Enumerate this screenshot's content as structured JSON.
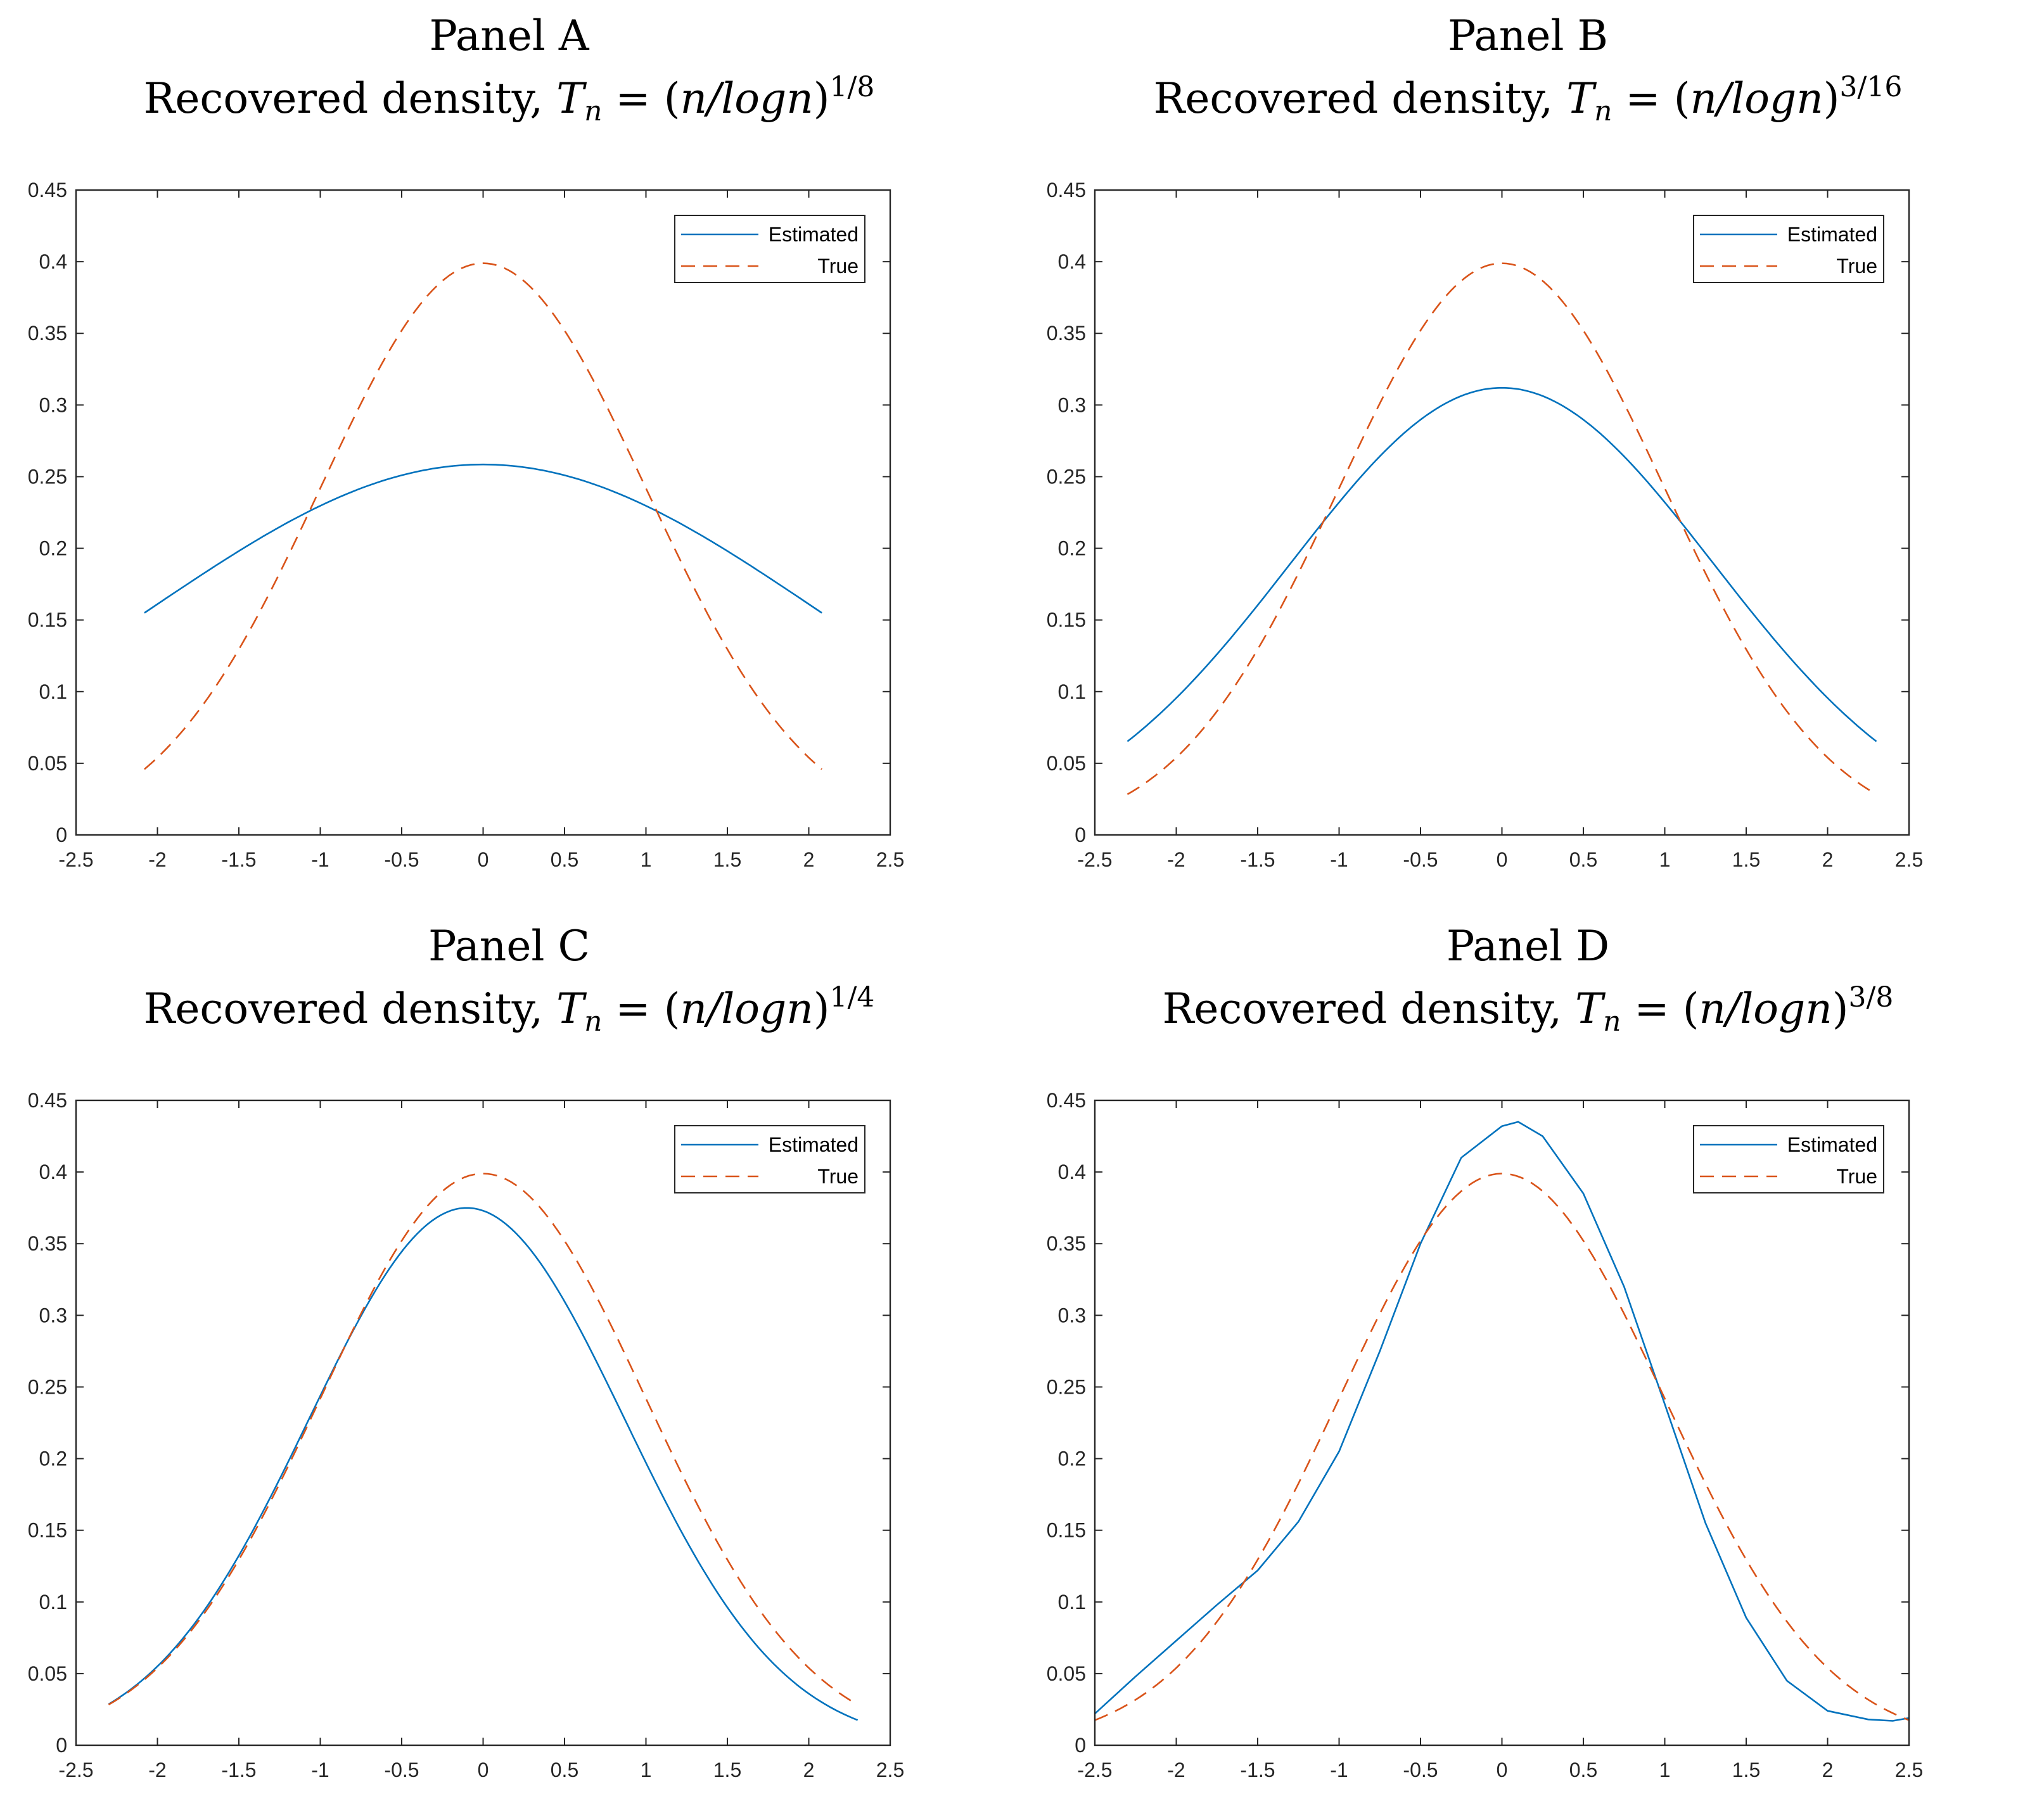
{
  "chart_data": [
    {
      "type": "line",
      "panel_label": "Panel A",
      "title_prefix": "Recovered density, ",
      "title_math": {
        "T": "T",
        "sub": "n",
        "eq": " = (",
        "frac": "n/logn",
        "close": ")",
        "exponent": "1/8"
      },
      "xlim": [
        -2.5,
        2.5
      ],
      "ylim": [
        0,
        0.45
      ],
      "xticks": [
        "-2.5",
        "-2",
        "-1.5",
        "-1",
        "-0.5",
        "0",
        "0.5",
        "1",
        "1.5",
        "2",
        "2.5"
      ],
      "yticks": [
        "0",
        "0.05",
        "0.1",
        "0.15",
        "0.2",
        "0.25",
        "0.3",
        "0.35",
        "0.4",
        "0.45"
      ],
      "legend": {
        "placement": "top-right",
        "entries": [
          "Estimated",
          "True"
        ]
      },
      "series": [
        {
          "name": "Estimated",
          "style": "solid",
          "color": "#0072BD",
          "model": {
            "amp": 0.2585,
            "mu": 0.0,
            "sigma": 2.056
          },
          "x_range": [
            -2.08,
            2.08
          ]
        },
        {
          "name": "True",
          "style": "dashed",
          "color": "#D95319",
          "model": {
            "amp": 0.3989,
            "mu": 0.0,
            "sigma": 1.0
          },
          "x_range": [
            -2.08,
            2.08
          ]
        }
      ]
    },
    {
      "type": "line",
      "panel_label": "Panel B",
      "title_prefix": "Recovered density, ",
      "title_math": {
        "T": "T",
        "sub": "n",
        "eq": " = (",
        "frac": "n/logn",
        "close": ")",
        "exponent": "3/16"
      },
      "xlim": [
        -2.5,
        2.5
      ],
      "ylim": [
        0,
        0.45
      ],
      "xticks": [
        "-2.5",
        "-2",
        "-1.5",
        "-1",
        "-0.5",
        "0",
        "0.5",
        "1",
        "1.5",
        "2",
        "2.5"
      ],
      "yticks": [
        "0",
        "0.05",
        "0.1",
        "0.15",
        "0.2",
        "0.25",
        "0.3",
        "0.35",
        "0.4",
        "0.45"
      ],
      "legend": {
        "placement": "top-right",
        "entries": [
          "Estimated",
          "True"
        ]
      },
      "series": [
        {
          "name": "Estimated",
          "style": "solid",
          "color": "#0072BD",
          "model": {
            "amp": 0.312,
            "mu": 0.0,
            "sigma": 1.3
          },
          "x_range": [
            -2.3,
            2.3
          ]
        },
        {
          "name": "True",
          "style": "dashed",
          "color": "#D95319",
          "model": {
            "amp": 0.3989,
            "mu": 0.0,
            "sigma": 1.0
          },
          "x_range": [
            -2.3,
            2.3
          ]
        }
      ]
    },
    {
      "type": "line",
      "panel_label": "Panel C",
      "title_prefix": "Recovered density, ",
      "title_math": {
        "T": "T",
        "sub": "n",
        "eq": " = (",
        "frac": "n/logn",
        "close": ")",
        "exponent": "1/4"
      },
      "xlim": [
        -2.5,
        2.5
      ],
      "ylim": [
        0,
        0.45
      ],
      "xticks": [
        "-2.5",
        "-2",
        "-1.5",
        "-1",
        "-0.5",
        "0",
        "0.5",
        "1",
        "1.5",
        "2",
        "2.5"
      ],
      "yticks": [
        "0",
        "0.05",
        "0.1",
        "0.15",
        "0.2",
        "0.25",
        "0.3",
        "0.35",
        "0.4",
        "0.45"
      ],
      "legend": {
        "placement": "top-right",
        "entries": [
          "Estimated",
          "True"
        ]
      },
      "series": [
        {
          "name": "Estimated",
          "style": "solid",
          "color": "#0072BD",
          "model": {
            "amp": 0.375,
            "mu": -0.1,
            "sigma": 0.97
          },
          "x_range": [
            -2.3,
            2.3
          ]
        },
        {
          "name": "True",
          "style": "dashed",
          "color": "#D95319",
          "model": {
            "amp": 0.3989,
            "mu": 0.0,
            "sigma": 1.0
          },
          "x_range": [
            -2.3,
            2.3
          ]
        }
      ]
    },
    {
      "type": "line",
      "panel_label": "Panel D",
      "title_prefix": "Recovered density, ",
      "title_math": {
        "T": "T",
        "sub": "n",
        "eq": " = (",
        "frac": "n/logn",
        "close": ")",
        "exponent": "3/8"
      },
      "xlim": [
        -2.5,
        2.5
      ],
      "ylim": [
        0,
        0.45
      ],
      "xticks": [
        "-2.5",
        "-2",
        "-1.5",
        "-1",
        "-0.5",
        "0",
        "0.5",
        "1",
        "1.5",
        "2",
        "2.5"
      ],
      "yticks": [
        "0",
        "0.05",
        "0.1",
        "0.15",
        "0.2",
        "0.25",
        "0.3",
        "0.35",
        "0.4",
        "0.45"
      ],
      "legend": {
        "placement": "top-right",
        "entries": [
          "Estimated",
          "True"
        ]
      },
      "series": [
        {
          "name": "Estimated",
          "style": "solid",
          "color": "#0072BD",
          "x": [
            -2.5,
            -2.25,
            -2.0,
            -1.75,
            -1.5,
            -1.25,
            -1.0,
            -0.75,
            -0.5,
            -0.25,
            0.0,
            0.1,
            0.25,
            0.5,
            0.75,
            1.0,
            1.25,
            1.5,
            1.75,
            2.0,
            2.25,
            2.4,
            2.5
          ],
          "y": [
            0.022,
            0.048,
            0.073,
            0.098,
            0.122,
            0.156,
            0.205,
            0.275,
            0.35,
            0.41,
            0.432,
            0.435,
            0.425,
            0.385,
            0.32,
            0.238,
            0.155,
            0.089,
            0.045,
            0.024,
            0.018,
            0.017,
            0.019
          ]
        },
        {
          "name": "True",
          "style": "dashed",
          "color": "#D95319",
          "model": {
            "amp": 0.3989,
            "mu": 0.0,
            "sigma": 1.0
          },
          "x_range": [
            -2.5,
            2.5
          ]
        }
      ]
    }
  ]
}
